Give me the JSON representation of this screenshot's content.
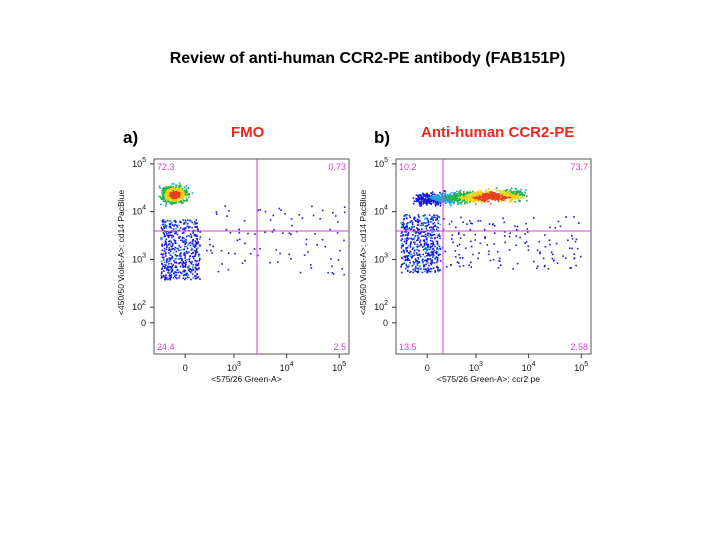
{
  "page_title": "Review of anti-human CCR2-PE antibody (FAB151P)",
  "colors": {
    "gate": "#d63fd0",
    "heading": "#e8261f",
    "density_low": "#1a1ad6",
    "density_high": "#e8401a"
  },
  "chart_data": [
    {
      "type": "scatter",
      "panel_label": "a)",
      "heading": "FMO",
      "xlabel": "<575/26 Green-A>",
      "ylabel": "<450/50 Violet-A>: cd14 PacBlue",
      "x_scale": "biexponential",
      "y_scale": "biexponential",
      "x_ticks": [
        {
          "value": 0,
          "base": "0",
          "exp": ""
        },
        {
          "value": 1000,
          "base": "10",
          "exp": "3"
        },
        {
          "value": 10000,
          "base": "10",
          "exp": "4"
        },
        {
          "value": 100000,
          "base": "10",
          "exp": "5"
        }
      ],
      "y_ticks": [
        {
          "value": 0,
          "base": "0",
          "exp": ""
        },
        {
          "value": 100,
          "base": "10",
          "exp": "2"
        },
        {
          "value": 1000,
          "base": "10",
          "exp": "3"
        },
        {
          "value": 10000,
          "base": "10",
          "exp": "4"
        },
        {
          "value": 100000,
          "base": "10",
          "exp": "5"
        }
      ],
      "quadrants": {
        "top_left": "72.3",
        "top_right": "0.73",
        "bottom_left": "24.4",
        "bottom_right": "2.5"
      },
      "populations": [
        {
          "name": "cd14+ dense",
          "x_center": 0,
          "y_center": 23000,
          "density": "high"
        },
        {
          "name": "cd14 low",
          "x_center": 0,
          "y_center": 2500,
          "density": "low"
        }
      ]
    },
    {
      "type": "scatter",
      "panel_label": "b)",
      "heading": "Anti-human CCR2-PE",
      "xlabel": "<575/26 Green-A>: ccr2 pe",
      "ylabel": "<450/50 Violet-A>: cd14 PacBlue",
      "x_scale": "biexponential",
      "y_scale": "biexponential",
      "x_ticks": [
        {
          "value": 0,
          "base": "0",
          "exp": ""
        },
        {
          "value": 1000,
          "base": "10",
          "exp": "3"
        },
        {
          "value": 10000,
          "base": "10",
          "exp": "4"
        },
        {
          "value": 100000,
          "base": "10",
          "exp": "5"
        }
      ],
      "y_ticks": [
        {
          "value": 0,
          "base": "0",
          "exp": ""
        },
        {
          "value": 100,
          "base": "10",
          "exp": "2"
        },
        {
          "value": 1000,
          "base": "10",
          "exp": "3"
        },
        {
          "value": 10000,
          "base": "10",
          "exp": "4"
        },
        {
          "value": 100000,
          "base": "10",
          "exp": "5"
        }
      ],
      "quadrants": {
        "top_left": "10.2",
        "top_right": "73.7",
        "bottom_left": "13.5",
        "bottom_right": "2.58"
      },
      "populations": [
        {
          "name": "ccr2+ cd14+ dense",
          "x_center": 2000,
          "y_center": 25000,
          "density": "high"
        },
        {
          "name": "cd14 low",
          "x_center": 0,
          "y_center": 3500,
          "density": "low"
        }
      ]
    }
  ]
}
